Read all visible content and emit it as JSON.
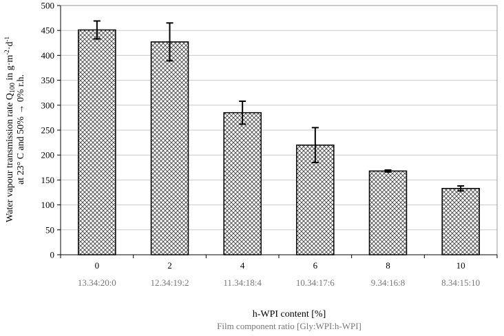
{
  "chart_data": {
    "type": "bar",
    "categories": [
      "0",
      "2",
      "4",
      "6",
      "8",
      "10"
    ],
    "component_ratios": [
      "13.34:20:0",
      "12.34:19:2",
      "11.34:18:4",
      "10.34:17:6",
      "9.34:16:8",
      "8.34:15:10"
    ],
    "values": [
      451,
      427,
      285,
      220,
      168,
      133
    ],
    "errors": [
      18,
      38,
      23,
      35,
      2,
      5
    ],
    "ylim": [
      0,
      500
    ],
    "yticks": [
      "0",
      "50",
      "100",
      "150",
      "200",
      "250",
      "300",
      "350",
      "400",
      "450",
      "500"
    ],
    "xlabel": "h-WPI content [%]",
    "xlabel_secondary": "Film component ratio [Gly:WPI:h-WPI]",
    "ylabel": {
      "prefix": "Water vapour transmission rate Q",
      "subscript": "100",
      "units_prefix": " in g·m",
      "units_exp1": "-2",
      "units_mid": "·d",
      "units_exp2": "-1",
      "line2": "at 23° C and 50% → 0% r.h."
    },
    "grid": true,
    "bar_fill": "crosshatch",
    "colors": {
      "bar_stroke": "#000000",
      "grid": "#c8c8c8",
      "secondary_text": "#777777"
    }
  }
}
